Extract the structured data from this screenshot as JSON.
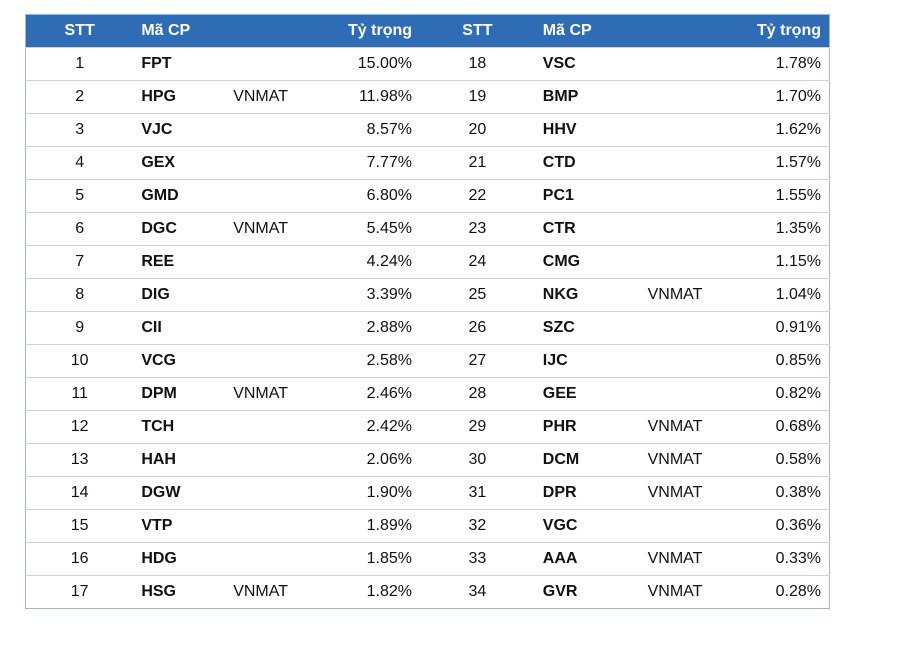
{
  "table": {
    "header": [
      "STT",
      "Mã CP",
      "Tỷ trọng",
      "STT",
      "Mã CP",
      "Tỷ trọng"
    ],
    "rows": [
      {
        "left": {
          "stt": 1,
          "code": "FPT",
          "weight": "15.00%"
        },
        "right": {
          "stt": 18,
          "code": "VSC",
          "weight": "1.78%"
        }
      },
      {
        "left": {
          "stt": 2,
          "code": "HPG",
          "tag": "VNMAT",
          "weight": "11.98%"
        },
        "right": {
          "stt": 19,
          "code": "BMP",
          "weight": "1.70%"
        }
      },
      {
        "left": {
          "stt": 3,
          "code": "VJC",
          "weight": "8.57%"
        },
        "right": {
          "stt": 20,
          "code": "HHV",
          "weight": "1.62%"
        }
      },
      {
        "left": {
          "stt": 4,
          "code": "GEX",
          "weight": "7.77%"
        },
        "right": {
          "stt": 21,
          "code": "CTD",
          "weight": "1.57%"
        }
      },
      {
        "left": {
          "stt": 5,
          "code": "GMD",
          "weight": "6.80%"
        },
        "right": {
          "stt": 22,
          "code": "PC1",
          "weight": "1.55%"
        }
      },
      {
        "left": {
          "stt": 6,
          "code": "DGC",
          "tag": "VNMAT",
          "weight": "5.45%"
        },
        "right": {
          "stt": 23,
          "code": "CTR",
          "weight": "1.35%"
        }
      },
      {
        "left": {
          "stt": 7,
          "code": "REE",
          "weight": "4.24%"
        },
        "right": {
          "stt": 24,
          "code": "CMG",
          "weight": "1.15%"
        }
      },
      {
        "left": {
          "stt": 8,
          "code": "DIG",
          "weight": "3.39%"
        },
        "right": {
          "stt": 25,
          "code": "NKG",
          "tag": "VNMAT",
          "weight": "1.04%"
        }
      },
      {
        "left": {
          "stt": 9,
          "code": "CII",
          "weight": "2.88%"
        },
        "right": {
          "stt": 26,
          "code": "SZC",
          "weight": "0.91%"
        }
      },
      {
        "left": {
          "stt": 10,
          "code": "VCG",
          "weight": "2.58%"
        },
        "right": {
          "stt": 27,
          "code": "IJC",
          "weight": "0.85%"
        }
      },
      {
        "left": {
          "stt": 11,
          "code": "DPM",
          "tag": "VNMAT",
          "weight": "2.46%"
        },
        "right": {
          "stt": 28,
          "code": "GEE",
          "weight": "0.82%"
        }
      },
      {
        "left": {
          "stt": 12,
          "code": "TCH",
          "weight": "2.42%"
        },
        "right": {
          "stt": 29,
          "code": "PHR",
          "tag": "VNMAT",
          "weight": "0.68%"
        }
      },
      {
        "left": {
          "stt": 13,
          "code": "HAH",
          "weight": "2.06%"
        },
        "right": {
          "stt": 30,
          "code": "DCM",
          "tag": "VNMAT",
          "weight": "0.58%"
        }
      },
      {
        "left": {
          "stt": 14,
          "code": "DGW",
          "weight": "1.90%"
        },
        "right": {
          "stt": 31,
          "code": "DPR",
          "tag": "VNMAT",
          "weight": "0.38%"
        }
      },
      {
        "left": {
          "stt": 15,
          "code": "VTP",
          "weight": "1.89%"
        },
        "right": {
          "stt": 32,
          "code": "VGC",
          "weight": "0.36%"
        }
      },
      {
        "left": {
          "stt": 16,
          "code": "HDG",
          "weight": "1.85%"
        },
        "right": {
          "stt": 33,
          "code": "AAA",
          "tag": "VNMAT",
          "weight": "0.33%"
        }
      },
      {
        "left": {
          "stt": 17,
          "code": "HSG",
          "tag": "VNMAT",
          "weight": "1.82%"
        },
        "right": {
          "stt": 34,
          "code": "GVR",
          "tag": "VNMAT",
          "weight": "0.28%"
        }
      }
    ]
  }
}
